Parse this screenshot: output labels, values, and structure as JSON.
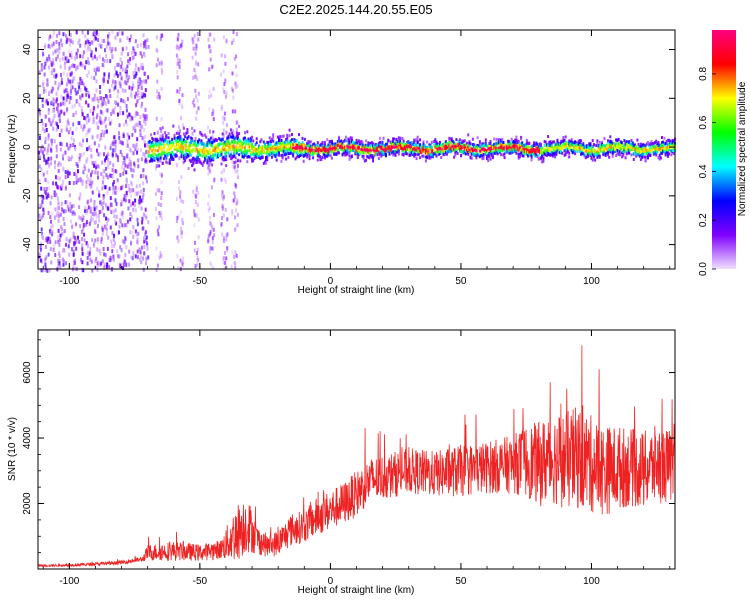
{
  "title": "C2E2.2025.144.20.55.E05",
  "chart_data": [
    {
      "type": "heatmap",
      "xlabel": "Height of straight line (km)",
      "ylabel": "Frequency (Hz)",
      "xlim": [
        -112,
        132
      ],
      "ylim": [
        -50,
        48
      ],
      "x_ticks": [
        "-100",
        "-50",
        "0",
        "50",
        "100"
      ],
      "y_ticks": [
        "-40",
        "-20",
        "0",
        "20",
        "40"
      ],
      "x_tick_values": [
        -100,
        -50,
        0,
        50,
        100
      ],
      "y_tick_values": [
        -40,
        -20,
        0,
        20,
        40
      ],
      "colorbar": {
        "label": "Normalized spectral amplitude",
        "range": [
          0,
          0.98
        ],
        "ticks": [
          "0.0",
          "0.2",
          "0.4",
          "0.6",
          "0.8"
        ],
        "tick_values": [
          0.0,
          0.2,
          0.4,
          0.6,
          0.8
        ],
        "colors": [
          "#f0e0ff",
          "#8000ff",
          "#0000ff",
          "#00ffff",
          "#00ff00",
          "#ffff00",
          "#ff0000",
          "#ff0080"
        ]
      },
      "regions": [
        {
          "name": "scattered low-amplitude noise",
          "x_range": [
            -112,
            -70
          ],
          "y_range": [
            -50,
            48
          ],
          "amplitude": 0.15
        },
        {
          "name": "sparse noise columns",
          "x_range": [
            -70,
            -35
          ],
          "y_range": [
            -50,
            48
          ],
          "amplitude": 0.05
        },
        {
          "name": "carrier band",
          "x_range": [
            -70,
            132
          ],
          "y_range": [
            -8,
            8
          ],
          "amplitude": 0.9
        }
      ]
    },
    {
      "type": "line",
      "xlabel": "Height of straight line (km)",
      "ylabel": "SNR (10 * v/v)",
      "xlim": [
        -112,
        132
      ],
      "ylim": [
        0,
        7300
      ],
      "x_ticks": [
        "-100",
        "-50",
        "0",
        "50",
        "100"
      ],
      "y_ticks": [
        "2000",
        "4000",
        "6000"
      ],
      "x_tick_values": [
        -100,
        -50,
        0,
        50,
        100
      ],
      "y_tick_values": [
        2000,
        4000,
        6000
      ],
      "color": "#ee2222",
      "series": [
        {
          "x": [
            -112,
            -100,
            -90,
            -80,
            -72,
            -70,
            -60,
            -50,
            -42,
            -36,
            -32,
            -28,
            -24,
            -20,
            -15,
            -10,
            -5,
            0,
            5,
            10,
            15,
            20,
            30,
            40,
            50,
            60,
            70,
            75,
            80,
            85,
            90,
            95,
            100,
            105,
            110,
            115,
            120,
            125,
            132
          ],
          "y": [
            100,
            120,
            150,
            200,
            300,
            500,
            550,
            500,
            600,
            1100,
            1400,
            900,
            700,
            800,
            1200,
            1300,
            1600,
            1800,
            2000,
            2300,
            2700,
            2800,
            3000,
            2900,
            3000,
            3100,
            3200,
            3300,
            3200,
            3400,
            3300,
            3400,
            3200,
            3000,
            3100,
            3100,
            3000,
            3200,
            3100
          ],
          "noise": [
            30,
            40,
            50,
            60,
            80,
            250,
            300,
            250,
            300,
            900,
            900,
            450,
            350,
            400,
            500,
            500,
            600,
            600,
            650,
            700,
            700,
            700,
            700,
            700,
            800,
            800,
            900,
            1100,
            1300,
            1400,
            1500,
            1600,
            1500,
            1400,
            1300,
            1200,
            1200,
            1200,
            1100
          ]
        }
      ]
    }
  ]
}
